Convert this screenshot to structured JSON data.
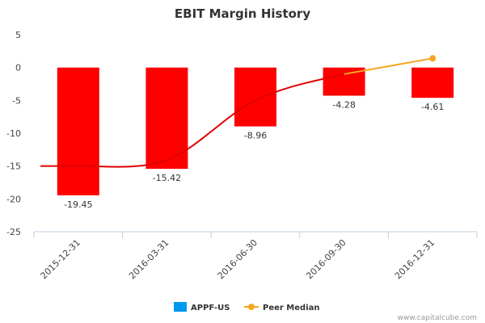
{
  "chart_data": {
    "type": "bar",
    "title": "EBIT Margin History",
    "categories": [
      "2015-12-31",
      "2016-03-31",
      "2016-06-30",
      "2016-09-30",
      "2016-12-31"
    ],
    "series": [
      {
        "name": "APPF-US",
        "type": "bar",
        "values": [
          -19.45,
          -15.42,
          -8.96,
          -4.28,
          -4.61
        ],
        "data_labels": [
          "-19.45",
          "-15.42",
          "-8.96",
          "-4.28",
          "-4.61"
        ],
        "color": "#ff0000",
        "legend_color": "#0099ee"
      },
      {
        "name": "Peer Median",
        "type": "line",
        "values": [
          -15.0,
          -14.1,
          -5.0,
          -1.0,
          1.4
        ],
        "marker_last_only": true,
        "color_past": "#e00000",
        "color_future": "#f5a623"
      }
    ],
    "ylim": [
      -25,
      5
    ],
    "yticks": [
      -25,
      -20,
      -15,
      -10,
      -5,
      0,
      5
    ],
    "xlabel": "",
    "ylabel": "",
    "legend": "bottom-center",
    "grid": false
  },
  "credit": "www.capitalcube.com"
}
